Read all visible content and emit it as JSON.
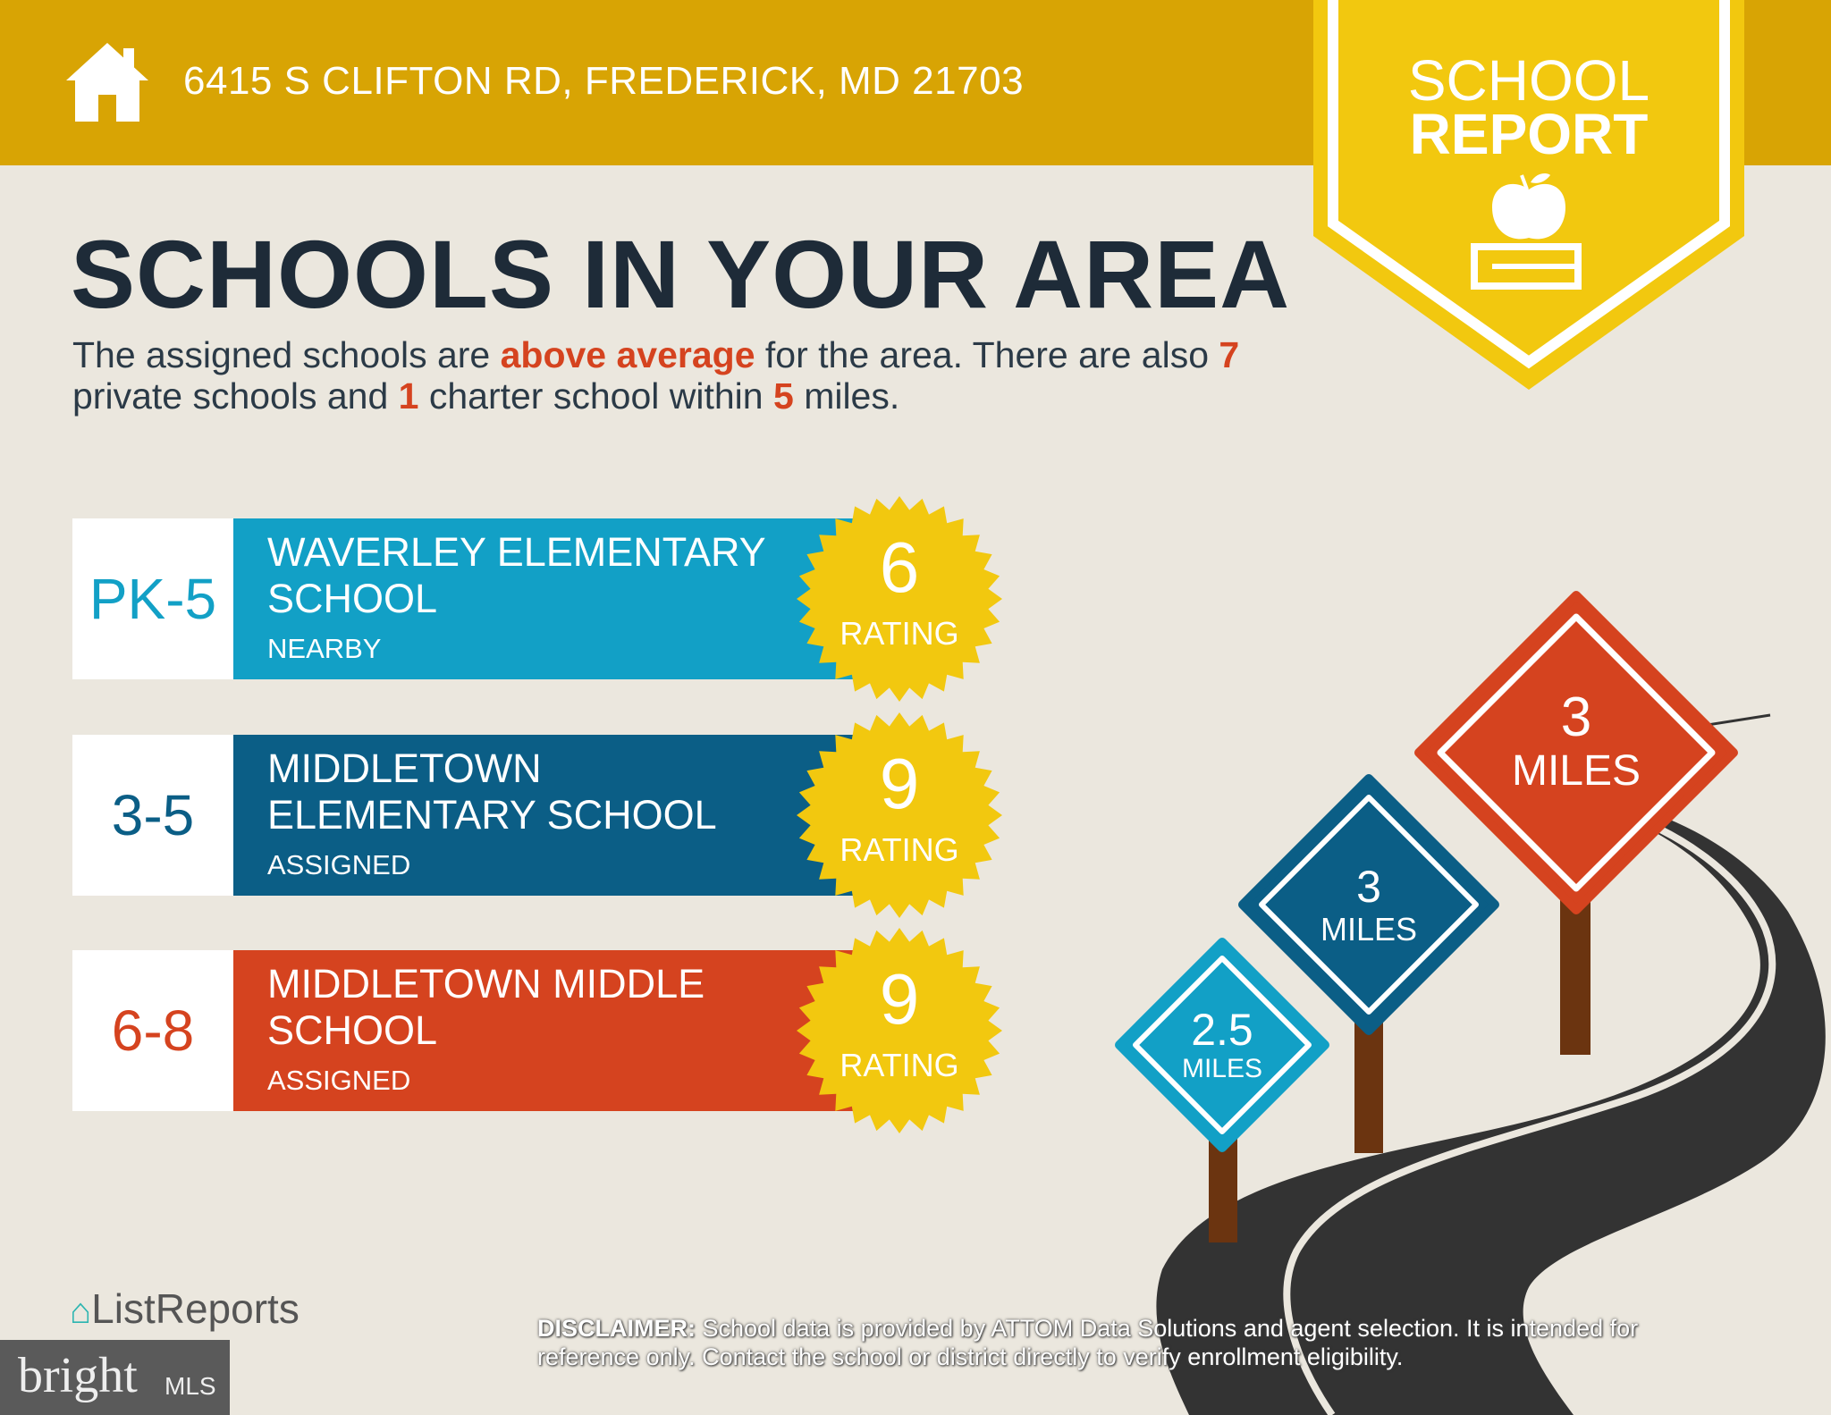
{
  "header": {
    "address": "6415 S CLIFTON RD, FREDERICK, MD 21703",
    "icon": "house-icon"
  },
  "banner": {
    "line1": "SCHOOL",
    "line2": "REPORT",
    "icon": "apple-on-book-icon"
  },
  "title": "SCHOOLS IN YOUR AREA",
  "subtitle": {
    "p1": "The assigned schools are ",
    "highlight": "above average",
    "p2": " for the area. There are also ",
    "private_count": "7",
    "p3": " private schools and ",
    "charter_count": "1",
    "p4": " charter school within ",
    "miles": "5",
    "p5": " miles."
  },
  "schools": [
    {
      "grades": "PK-5",
      "name": "WAVERLEY ELEMENTARY SCHOOL",
      "status": "NEARBY",
      "rating": "6",
      "rating_label": "RATING",
      "color": "#12a0c6",
      "grade_color": "#12a0c6"
    },
    {
      "grades": "3-5",
      "name": "MIDDLETOWN ELEMENTARY SCHOOL",
      "status": "ASSIGNED",
      "rating": "9",
      "rating_label": "RATING",
      "color": "#0b5e86",
      "grade_color": "#0b5e86"
    },
    {
      "grades": "6-8",
      "name": "MIDDLETOWN MIDDLE SCHOOL",
      "status": "ASSIGNED",
      "rating": "9",
      "rating_label": "RATING",
      "color": "#d5431f",
      "grade_color": "#d5431f"
    }
  ],
  "signs": [
    {
      "value": "3",
      "unit": "MILES",
      "color": "#d5431f"
    },
    {
      "value": "3",
      "unit": "MILES",
      "color": "#0b5e86"
    },
    {
      "value": "2.5",
      "unit": "MILES",
      "color": "#12a0c6"
    }
  ],
  "footer": {
    "listreports": "ListReports",
    "bright": "bright",
    "mls": "MLS",
    "disclaimer_label": "DISCLAIMER:",
    "disclaimer_text": " School data is provided by ATTOM Data Solutions and agent selection. It is intended for reference only. Contact the school or district directly to verify enrollment eligibility."
  },
  "colors": {
    "header": "#d8a404",
    "banner": "#f2c80f",
    "star": "#f2c80f",
    "background": "#ebe7de",
    "title": "#1e2b38",
    "highlight": "#d5431f",
    "road": "#333333",
    "post": "#6b3410"
  }
}
